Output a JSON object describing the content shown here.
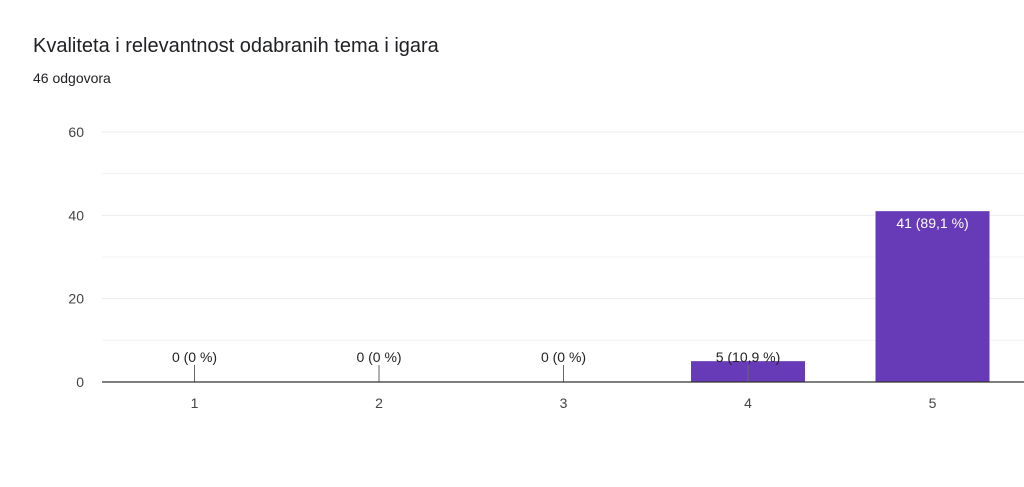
{
  "header": {
    "title": "Kvaliteta i relevantnost odabranih tema i igara",
    "response_count": "46 odgovora"
  },
  "colors": {
    "bar": "#673ab7",
    "grid": "#ebebeb",
    "axis": "#333333"
  },
  "chart_data": {
    "type": "bar",
    "title": "",
    "xlabel": "",
    "ylabel": "",
    "categories": [
      "1",
      "2",
      "3",
      "4",
      "5"
    ],
    "values": [
      0,
      0,
      0,
      5,
      41
    ],
    "data_labels": [
      "0 (0 %)",
      "0 (0 %)",
      "0 (0 %)",
      "5 (10,9 %)",
      "41 (89,1 %)"
    ],
    "ylim": [
      0,
      60
    ],
    "yticks": [
      0,
      20,
      40,
      60
    ],
    "grid": true,
    "legend": "none"
  }
}
